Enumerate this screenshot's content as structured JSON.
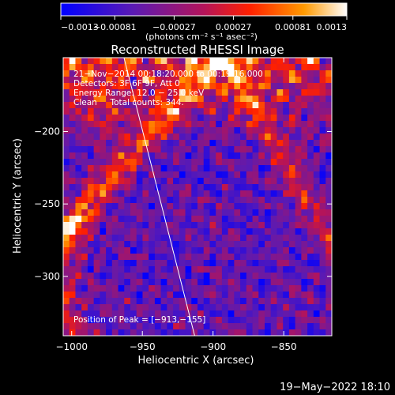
{
  "chart_data": {
    "type": "heatmap",
    "title": "Reconstructed RHESSI Image",
    "xlabel": "Heliocentric X (arcsec)",
    "ylabel": "Heliocentric Y (arcsec)",
    "xlim": [
      -1006,
      -816
    ],
    "ylim": [
      -341,
      -149
    ],
    "x_ticks": [
      -1000,
      -950,
      -900,
      -850
    ],
    "x_tick_labels": [
      "−1000",
      "−950",
      "−900",
      "−850"
    ],
    "y_ticks": [
      -200,
      -250,
      -300
    ],
    "y_tick_labels": [
      "−200",
      "−250",
      "−300"
    ],
    "colorbar": {
      "range": [
        -0.0013,
        0.0013
      ],
      "ticks": [
        -0.0013,
        -0.00081,
        -0.00027,
        0.00027,
        0.00081,
        0.0013
      ],
      "tick_labels": [
        "−0.0013",
        "−0.00081",
        "−0.00027",
        "0.00027",
        "0.00081",
        "0.0013"
      ],
      "units": "(photons cm⁻² s⁻¹ asec⁻²)",
      "colors": [
        "#0000ff",
        "#5a1ab4",
        "#b4145a",
        "#ff2000",
        "#ff9a00",
        "#ffffff"
      ]
    },
    "annotations": [
      "21−Nov−2014 00:18:20.000 to 00:19:16.000",
      "Detectors: 3F 6F 9F, Att 0",
      "Energy Range: 12.0 − 25.0 keV",
      "Clean     Total counts: 344."
    ],
    "peak_label": "Position of Peak = [−913,−155]",
    "limb_line": [
      {
        "x": -963,
        "y": -149
      },
      {
        "x": -913,
        "y": -341
      }
    ]
  },
  "footer": {
    "timestamp": "19−May−2022 18:10"
  }
}
